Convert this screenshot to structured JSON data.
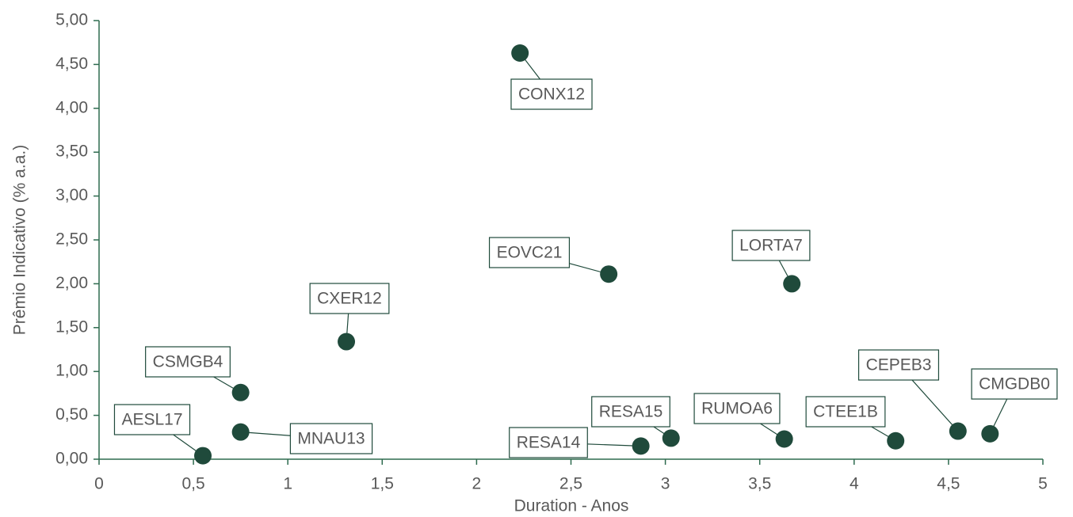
{
  "chart_data": {
    "type": "scatter",
    "x_label": "Duration - Anos",
    "y_label": "Prêmio Indicativo (% a.a.)",
    "labels": [
      "AESL17",
      "MNAU13",
      "CSMGB4",
      "CXER12",
      "CONX12",
      "EOVC21",
      "RESA14",
      "RESA15",
      "RUMOA6",
      "LORTA7",
      "CTEE1B",
      "CEPEB3",
      "CMGDB0"
    ],
    "x": [
      0.55,
      0.75,
      0.75,
      1.31,
      2.23,
      2.7,
      2.87,
      3.03,
      3.63,
      3.67,
      4.22,
      4.55,
      4.72
    ],
    "y": [
      0.04,
      0.31,
      0.76,
      1.34,
      4.63,
      2.11,
      0.15,
      0.24,
      0.23,
      2.0,
      0.21,
      0.32,
      0.29
    ],
    "color": "#1f4a3b",
    "xlim": [
      0,
      5
    ],
    "ylim": [
      0,
      5
    ],
    "xticks": [
      0,
      {
        "value": 0.5,
        "label": "0,5"
      },
      1,
      {
        "value": 1.5,
        "label": "1,5"
      },
      2,
      {
        "value": 2.5,
        "label": "2,5"
      },
      3,
      {
        "value": 3.5,
        "label": "3,5"
      },
      4,
      {
        "value": 4.5,
        "label": "4,5"
      },
      5
    ],
    "yticks": [
      {
        "value": 0,
        "label": "0,00"
      },
      {
        "value": 0.5,
        "label": "0,50"
      },
      {
        "value": 1,
        "label": "1,00"
      },
      {
        "value": 1.5,
        "label": "1,50"
      },
      {
        "value": 2,
        "label": "2,00"
      },
      {
        "value": 2.5,
        "label": "2,50"
      },
      {
        "value": 3,
        "label": "3,00"
      },
      {
        "value": 3.5,
        "label": "3,50"
      },
      {
        "value": 4,
        "label": "4,00"
      },
      {
        "value": 4.5,
        "label": "4,50"
      },
      {
        "value": 5,
        "label": "5,00"
      }
    ]
  }
}
